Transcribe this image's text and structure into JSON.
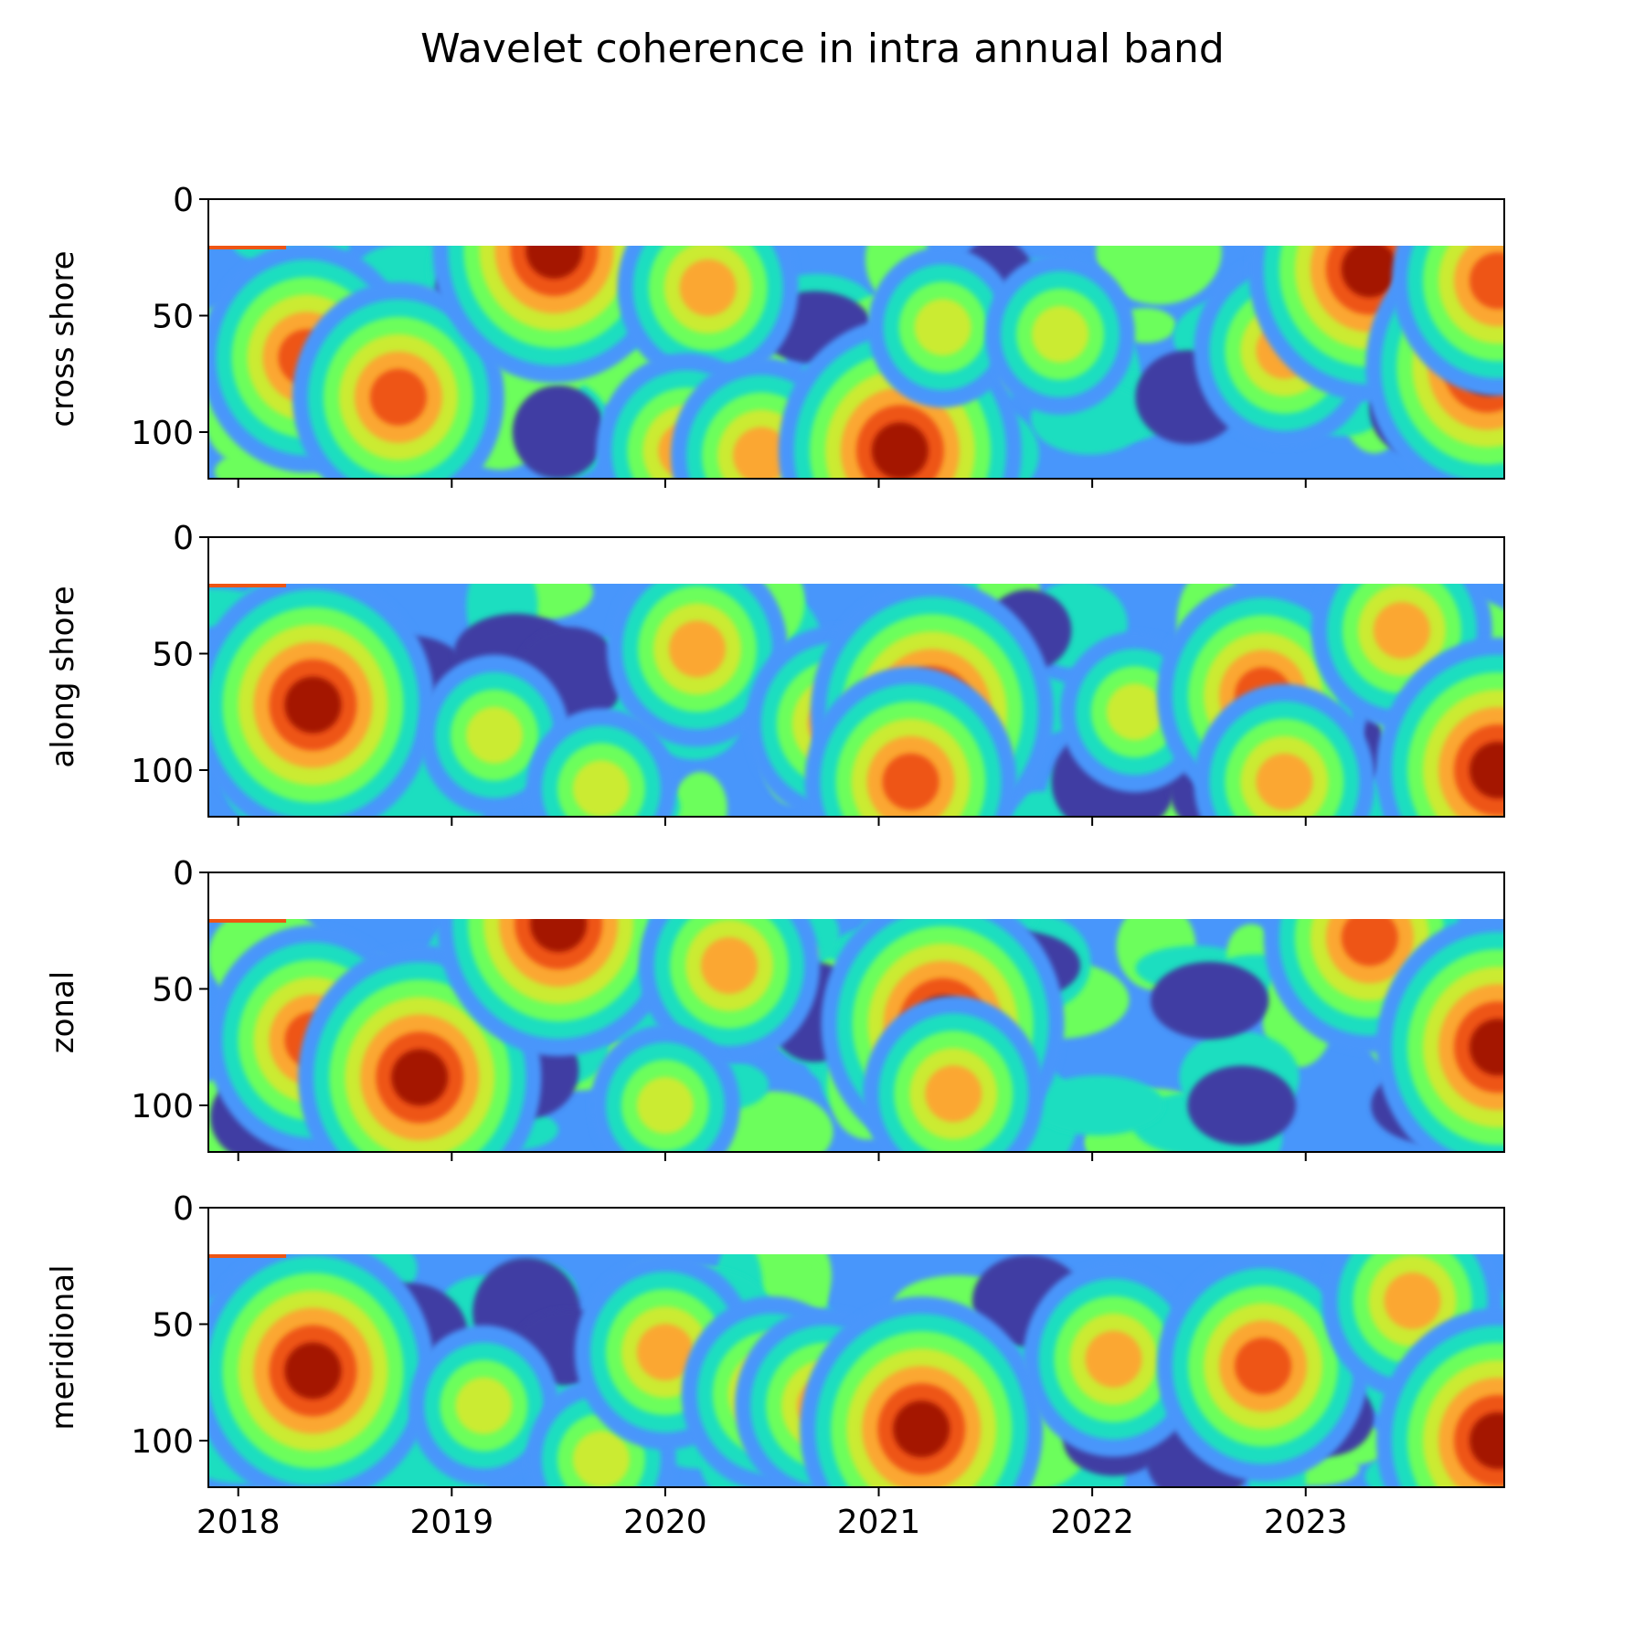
{
  "title": "Wavelet coherence in intra annual band",
  "chart_data": {
    "type": "heatmap",
    "title": "Wavelet coherence in intra annual band",
    "x_tick_labels": [
      "2018",
      "2019",
      "2020",
      "2021",
      "2022",
      "2023"
    ],
    "x_ticks": [
      2018.0,
      2019.0,
      2020.0,
      2021.0,
      2022.0,
      2023.0
    ],
    "xlim": [
      2017.86,
      2023.93
    ],
    "ylim": [
      120,
      0
    ],
    "y_inverted": true,
    "y_ticks": [
      0,
      50,
      100
    ],
    "y_tick_labels": [
      "0",
      "50",
      "100"
    ],
    "data_y_range": [
      20,
      120
    ],
    "shared_x": true,
    "colormap": [
      "#3f3ea3",
      "#4896fb",
      "#1adec0",
      "#6cfe5c",
      "#cbeb30",
      "#fba731",
      "#ee5514",
      "#a41506"
    ],
    "panels": [
      {
        "ylabel": "cross shore",
        "blobs": [
          {
            "x": 2018.32,
            "y": 68,
            "level": 7
          },
          {
            "x": 2018.75,
            "y": 85,
            "level": 7
          },
          {
            "x": 2019.48,
            "y": 22,
            "level": 8
          },
          {
            "x": 2020.2,
            "y": 38,
            "level": 6
          },
          {
            "x": 2020.1,
            "y": 108,
            "level": 6
          },
          {
            "x": 2020.45,
            "y": 110,
            "level": 6
          },
          {
            "x": 2021.1,
            "y": 108,
            "level": 8
          },
          {
            "x": 2021.3,
            "y": 55,
            "level": 5
          },
          {
            "x": 2021.85,
            "y": 58,
            "level": 5
          },
          {
            "x": 2022.9,
            "y": 65,
            "level": 6
          },
          {
            "x": 2023.3,
            "y": 30,
            "level": 8
          },
          {
            "x": 2023.85,
            "y": 72,
            "level": 8
          },
          {
            "x": 2023.9,
            "y": 35,
            "level": 7
          }
        ],
        "lows": [
          {
            "x": 2018.15,
            "y": 75
          },
          {
            "x": 2019.2,
            "y": 40
          },
          {
            "x": 2019.5,
            "y": 100
          },
          {
            "x": 2020.7,
            "y": 55
          },
          {
            "x": 2021.55,
            "y": 40
          },
          {
            "x": 2022.45,
            "y": 85
          },
          {
            "x": 2023.5,
            "y": 90
          }
        ]
      },
      {
        "ylabel": "along shore",
        "blobs": [
          {
            "x": 2018.35,
            "y": 72,
            "level": 8
          },
          {
            "x": 2019.2,
            "y": 85,
            "level": 5
          },
          {
            "x": 2019.7,
            "y": 108,
            "level": 5
          },
          {
            "x": 2020.15,
            "y": 48,
            "level": 6
          },
          {
            "x": 2020.8,
            "y": 80,
            "level": 6
          },
          {
            "x": 2021.25,
            "y": 75,
            "level": 8
          },
          {
            "x": 2021.15,
            "y": 105,
            "level": 7
          },
          {
            "x": 2022.2,
            "y": 75,
            "level": 5
          },
          {
            "x": 2022.8,
            "y": 68,
            "level": 7
          },
          {
            "x": 2022.9,
            "y": 105,
            "level": 6
          },
          {
            "x": 2023.45,
            "y": 40,
            "level": 6
          },
          {
            "x": 2023.9,
            "y": 100,
            "level": 8
          }
        ],
        "lows": [
          {
            "x": 2018.8,
            "y": 60
          },
          {
            "x": 2019.3,
            "y": 50
          },
          {
            "x": 2019.55,
            "y": 60
          },
          {
            "x": 2021.7,
            "y": 40
          },
          {
            "x": 2022.1,
            "y": 105
          },
          {
            "x": 2022.55,
            "y": 105
          },
          {
            "x": 2023.1,
            "y": 90
          }
        ]
      },
      {
        "ylabel": "zonal",
        "blobs": [
          {
            "x": 2018.35,
            "y": 72,
            "level": 7
          },
          {
            "x": 2018.85,
            "y": 88,
            "level": 8
          },
          {
            "x": 2019.5,
            "y": 22,
            "level": 8
          },
          {
            "x": 2020.3,
            "y": 40,
            "level": 6
          },
          {
            "x": 2020.0,
            "y": 100,
            "level": 5
          },
          {
            "x": 2021.3,
            "y": 65,
            "level": 8
          },
          {
            "x": 2021.35,
            "y": 95,
            "level": 6
          },
          {
            "x": 2023.3,
            "y": 28,
            "level": 7
          },
          {
            "x": 2023.9,
            "y": 75,
            "level": 8
          }
        ],
        "lows": [
          {
            "x": 2018.1,
            "y": 105
          },
          {
            "x": 2019.35,
            "y": 85
          },
          {
            "x": 2019.6,
            "y": 40
          },
          {
            "x": 2020.7,
            "y": 60
          },
          {
            "x": 2021.65,
            "y": 40
          },
          {
            "x": 2022.55,
            "y": 55
          },
          {
            "x": 2022.7,
            "y": 100
          },
          {
            "x": 2023.6,
            "y": 100
          }
        ]
      },
      {
        "ylabel": "meridional",
        "blobs": [
          {
            "x": 2018.35,
            "y": 70,
            "level": 8
          },
          {
            "x": 2019.15,
            "y": 85,
            "level": 5
          },
          {
            "x": 2019.7,
            "y": 108,
            "level": 5
          },
          {
            "x": 2020.0,
            "y": 62,
            "level": 6
          },
          {
            "x": 2020.5,
            "y": 80,
            "level": 6
          },
          {
            "x": 2020.75,
            "y": 85,
            "level": 6
          },
          {
            "x": 2021.2,
            "y": 95,
            "level": 8
          },
          {
            "x": 2022.1,
            "y": 65,
            "level": 6
          },
          {
            "x": 2022.8,
            "y": 68,
            "level": 7
          },
          {
            "x": 2023.5,
            "y": 40,
            "level": 6
          },
          {
            "x": 2023.9,
            "y": 100,
            "level": 8
          }
        ],
        "lows": [
          {
            "x": 2018.8,
            "y": 55
          },
          {
            "x": 2019.35,
            "y": 45
          },
          {
            "x": 2019.55,
            "y": 60
          },
          {
            "x": 2021.7,
            "y": 40
          },
          {
            "x": 2022.1,
            "y": 100
          },
          {
            "x": 2022.5,
            "y": 105
          },
          {
            "x": 2023.1,
            "y": 90
          }
        ]
      }
    ]
  }
}
